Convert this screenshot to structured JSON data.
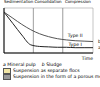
{
  "chart_data": {
    "type": "line",
    "x_label": "Time",
    "tick_labels": false,
    "xlim": [
      0,
      10
    ],
    "ylim": [
      0,
      110
    ],
    "x": [
      0,
      1,
      2,
      3,
      4,
      5,
      6,
      7,
      8,
      9,
      10
    ],
    "series": [
      {
        "name": "Mineral pulp",
        "label": "a",
        "color": "#222222",
        "values": [
          100,
          72,
          44,
          20,
          16,
          15,
          14,
          14,
          13,
          13,
          13
        ]
      },
      {
        "name": "Sludge",
        "label": "b",
        "color": "#555555",
        "values": [
          100,
          85,
          70,
          57,
          47,
          40,
          35,
          32,
          30,
          29,
          28
        ]
      }
    ],
    "zones": [
      {
        "label": "Sedimentation",
        "x": [
          0,
          3.3
        ]
      },
      {
        "label": "Consolidation",
        "x": [
          3.3,
          6.6
        ]
      },
      {
        "label": "Compression",
        "x": [
          6.6,
          10
        ]
      }
    ],
    "annotations": [
      {
        "text": "Type I",
        "x": 8,
        "y": 22
      },
      {
        "text": "Type II",
        "x": 8,
        "y": 42
      }
    ],
    "regions": [
      {
        "name": "Suspension as separate flocs",
        "color": "#f2e6a6"
      },
      {
        "name": "Suspension in the form of a porous medium",
        "color": "#9a9a9a"
      }
    ]
  }
}
